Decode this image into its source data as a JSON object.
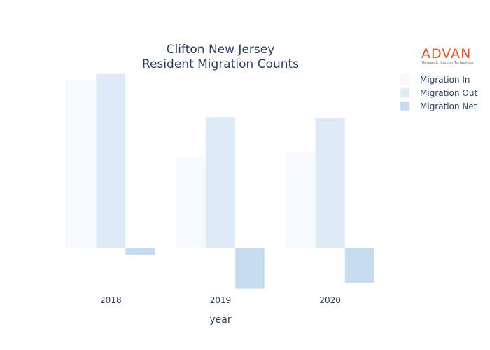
{
  "chart_data": {
    "type": "bar",
    "title_line1": "Clifton New Jersey",
    "title_line2": "Resident Migration Counts",
    "xlabel": "year",
    "categories": [
      "2018",
      "2019",
      "2020"
    ],
    "series": [
      {
        "name": "Migration In",
        "values": [
          1670,
          900,
          950
        ],
        "color": "#f7fbff"
      },
      {
        "name": "Migration Out",
        "values": [
          1740,
          1310,
          1300
        ],
        "color": "#deebf7"
      },
      {
        "name": "Migration Net",
        "values": [
          -70,
          -410,
          -350
        ],
        "color": "#c6dbef"
      }
    ],
    "ylim": [
      -460,
      1780
    ],
    "grid": false,
    "legend_position": "top-right"
  },
  "logo": {
    "text": "ADVAN",
    "tagline": "Research through Technology"
  }
}
